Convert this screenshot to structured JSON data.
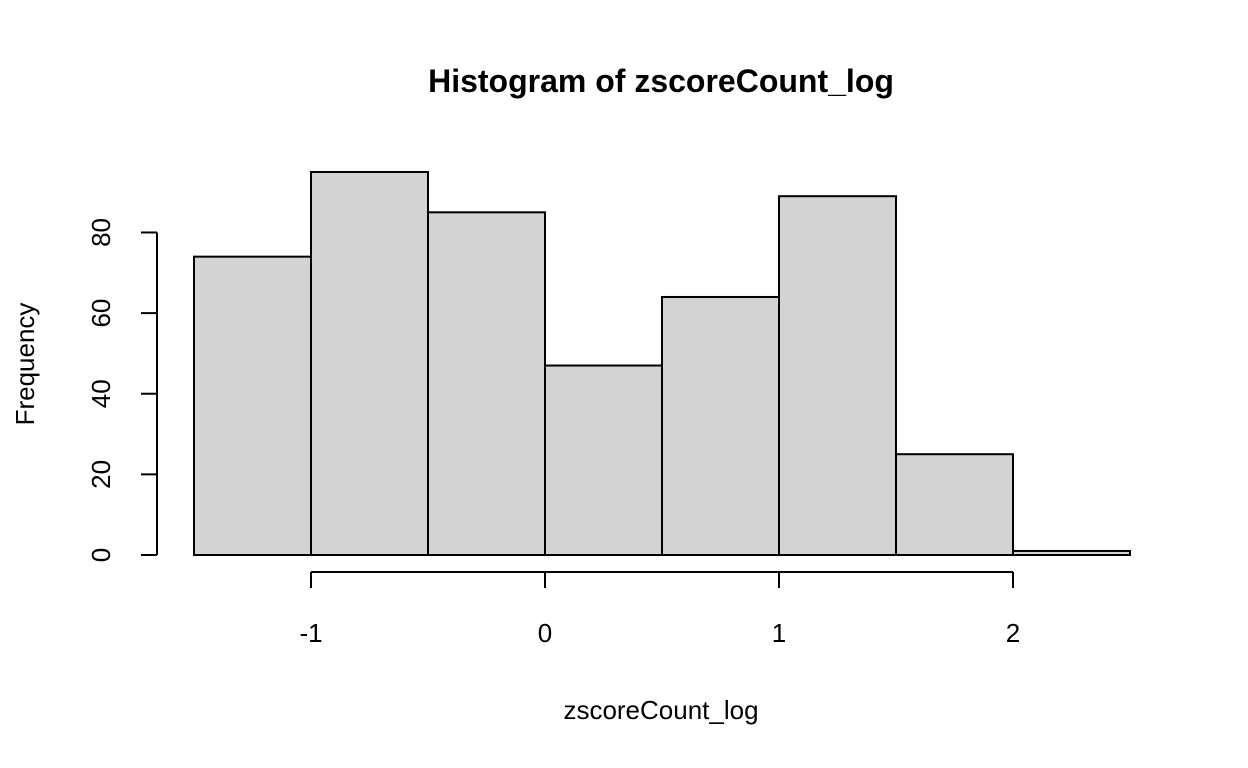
{
  "chart_data": {
    "type": "bar",
    "title": "Histogram of zscoreCount_log",
    "xlabel": "zscoreCount_log",
    "ylabel": "Frequency",
    "bin_edges": [
      -1.5,
      -1.0,
      -0.5,
      0.0,
      0.5,
      1.0,
      1.5,
      2.0,
      2.5
    ],
    "values": [
      74,
      95,
      85,
      47,
      64,
      89,
      25,
      1
    ],
    "x_ticks": [
      -1,
      0,
      1,
      2
    ],
    "x_tick_labels": [
      "-1",
      "0",
      "1",
      "2"
    ],
    "y_ticks": [
      0,
      20,
      40,
      60,
      80
    ],
    "y_tick_labels": [
      "0",
      "20",
      "40",
      "60",
      "80"
    ],
    "xlim": [
      -1.5,
      2.5
    ],
    "ylim": [
      0,
      95
    ],
    "grid": false,
    "bar_color": "#d3d3d3",
    "edge_color": "#000000"
  }
}
